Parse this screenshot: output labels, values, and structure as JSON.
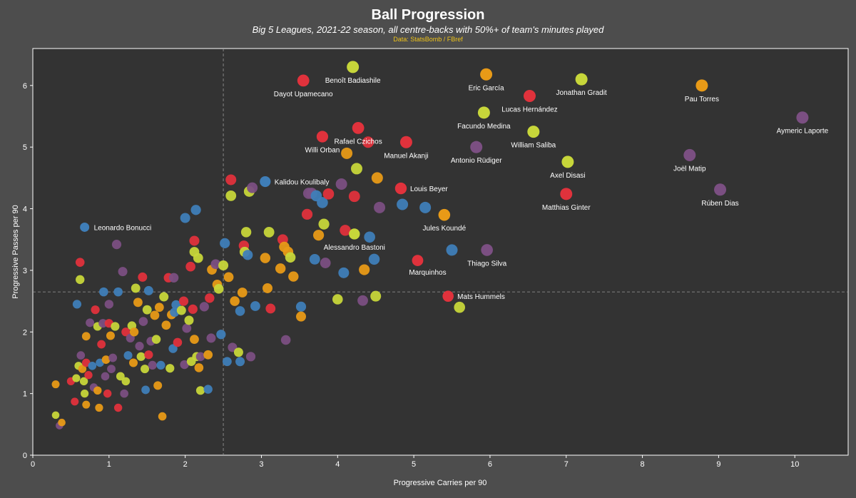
{
  "chart_data": {
    "type": "scatter",
    "title": "Ball Progression",
    "subtitle": "Big 5 Leagues, 2021-22 season, all centre-backs with 50%+ of team's minutes played",
    "source": "Data: StatsBomb / FBref",
    "xlabel": "Progressive Carries per 90",
    "ylabel": "Progressive Passes per 90",
    "xlim": [
      0,
      10.7
    ],
    "ylim": [
      0,
      6.6
    ],
    "xticks": [
      0,
      1,
      2,
      3,
      4,
      5,
      6,
      7,
      8,
      9,
      10
    ],
    "yticks": [
      0,
      1,
      2,
      3,
      4,
      5,
      6
    ],
    "x_mean": 2.5,
    "y_mean": 2.65,
    "grid": false,
    "colors": {
      "background": "#4d4d4d",
      "plot_background": "#333333",
      "red": "#e0323c",
      "orange": "#e89a17",
      "lime": "#c7d63a",
      "blue": "#3f7eb8",
      "purple": "#7b4f82"
    },
    "labeled_points": [
      {
        "name": "Benoît Badiashile",
        "x": 4.2,
        "y": 6.3,
        "color": "lime"
      },
      {
        "name": "Dayot Upamecano",
        "x": 3.55,
        "y": 6.08,
        "color": "red"
      },
      {
        "name": "Eric García",
        "x": 5.95,
        "y": 6.18,
        "color": "orange"
      },
      {
        "name": "Jonathan Gradit",
        "x": 7.2,
        "y": 6.1,
        "color": "lime"
      },
      {
        "name": "Pau Torres",
        "x": 8.78,
        "y": 6.0,
        "color": "orange"
      },
      {
        "name": "Lucas Hernández",
        "x": 6.52,
        "y": 5.83,
        "color": "red"
      },
      {
        "name": "Facundo Medina",
        "x": 5.92,
        "y": 5.56,
        "color": "lime"
      },
      {
        "name": "Aymeric Laporte",
        "x": 10.1,
        "y": 5.48,
        "color": "purple"
      },
      {
        "name": "Rafael Czichos",
        "x": 4.27,
        "y": 5.31,
        "color": "red"
      },
      {
        "name": "William Saliba",
        "x": 6.57,
        "y": 5.25,
        "color": "lime"
      },
      {
        "name": "Willi Orban",
        "x": 3.8,
        "y": 5.17,
        "color": "red"
      },
      {
        "name": "Manuel Akanji",
        "x": 4.9,
        "y": 5.08,
        "color": "red"
      },
      {
        "name": "Antonio Rüdiger",
        "x": 5.82,
        "y": 5.0,
        "color": "purple"
      },
      {
        "name": "Joël Matip",
        "x": 8.62,
        "y": 4.87,
        "color": "purple"
      },
      {
        "name": "Axel Disasi",
        "x": 7.02,
        "y": 4.76,
        "color": "lime"
      },
      {
        "name": "Kalidou Koulibaly",
        "x": 3.05,
        "y": 4.44,
        "color": "blue"
      },
      {
        "name": "Louis Beyer",
        "x": 4.83,
        "y": 4.33,
        "color": "red"
      },
      {
        "name": "Rúben Dias",
        "x": 9.02,
        "y": 4.31,
        "color": "purple"
      },
      {
        "name": "Matthias Ginter",
        "x": 7.0,
        "y": 4.24,
        "color": "red"
      },
      {
        "name": "Jules Koundé",
        "x": 5.4,
        "y": 3.9,
        "color": "orange"
      },
      {
        "name": "Leonardo Bonucci",
        "x": 0.68,
        "y": 3.7,
        "color": "blue"
      },
      {
        "name": "Alessandro Bastoni",
        "x": 4.22,
        "y": 3.59,
        "color": "lime"
      },
      {
        "name": "Thiago Silva",
        "x": 5.96,
        "y": 3.33,
        "color": "purple"
      },
      {
        "name": "Marquinhos",
        "x": 5.05,
        "y": 3.16,
        "color": "red"
      },
      {
        "name": "Mats Hummels",
        "x": 5.45,
        "y": 2.58,
        "color": "red"
      }
    ],
    "other_points": [
      [
        0.3,
        0.65,
        "lime"
      ],
      [
        0.35,
        0.48,
        "purple"
      ],
      [
        0.38,
        0.53,
        "orange"
      ],
      [
        0.3,
        1.15,
        "orange"
      ],
      [
        0.5,
        1.2,
        "red"
      ],
      [
        0.55,
        0.87,
        "red"
      ],
      [
        0.57,
        1.25,
        "lime"
      ],
      [
        0.6,
        1.45,
        "lime"
      ],
      [
        0.58,
        2.45,
        "blue"
      ],
      [
        0.62,
        2.85,
        "lime"
      ],
      [
        0.62,
        3.13,
        "red"
      ],
      [
        0.63,
        1.62,
        "purple"
      ],
      [
        0.65,
        1.4,
        "orange"
      ],
      [
        0.67,
        1.2,
        "lime"
      ],
      [
        0.68,
        1.0,
        "lime"
      ],
      [
        0.7,
        1.93,
        "orange"
      ],
      [
        0.7,
        1.5,
        "red"
      ],
      [
        0.7,
        0.82,
        "orange"
      ],
      [
        0.73,
        1.3,
        "red"
      ],
      [
        0.75,
        2.15,
        "purple"
      ],
      [
        0.78,
        1.45,
        "blue"
      ],
      [
        0.8,
        1.1,
        "purple"
      ],
      [
        0.82,
        2.36,
        "red"
      ],
      [
        0.85,
        1.05,
        "orange"
      ],
      [
        0.85,
        2.09,
        "lime"
      ],
      [
        0.87,
        0.77,
        "orange"
      ],
      [
        0.88,
        1.5,
        "blue"
      ],
      [
        0.9,
        1.8,
        "red"
      ],
      [
        0.92,
        2.14,
        "purple"
      ],
      [
        0.93,
        2.65,
        "blue"
      ],
      [
        0.95,
        1.28,
        "purple"
      ],
      [
        0.96,
        1.55,
        "orange"
      ],
      [
        0.98,
        1.0,
        "red"
      ],
      [
        1.0,
        2.45,
        "purple"
      ],
      [
        1.0,
        2.14,
        "red"
      ],
      [
        1.02,
        1.94,
        "orange"
      ],
      [
        1.03,
        1.4,
        "purple"
      ],
      [
        1.05,
        1.58,
        "purple"
      ],
      [
        1.08,
        2.09,
        "lime"
      ],
      [
        1.1,
        3.42,
        "purple"
      ],
      [
        1.12,
        0.77,
        "red"
      ],
      [
        1.12,
        2.65,
        "blue"
      ],
      [
        1.15,
        1.28,
        "lime"
      ],
      [
        1.18,
        2.98,
        "purple"
      ],
      [
        1.2,
        1.0,
        "purple"
      ],
      [
        1.22,
        1.2,
        "lime"
      ],
      [
        1.22,
        2.0,
        "red"
      ],
      [
        1.25,
        1.62,
        "blue"
      ],
      [
        1.28,
        1.9,
        "purple"
      ],
      [
        1.3,
        2.1,
        "lime"
      ],
      [
        1.32,
        1.5,
        "orange"
      ],
      [
        1.33,
        2.0,
        "orange"
      ],
      [
        1.35,
        2.71,
        "lime"
      ],
      [
        1.38,
        2.48,
        "orange"
      ],
      [
        1.4,
        1.77,
        "purple"
      ],
      [
        1.42,
        1.6,
        "lime"
      ],
      [
        1.44,
        2.89,
        "red"
      ],
      [
        1.45,
        2.17,
        "purple"
      ],
      [
        1.47,
        1.4,
        "lime"
      ],
      [
        1.48,
        1.06,
        "blue"
      ],
      [
        1.5,
        2.36,
        "lime"
      ],
      [
        1.52,
        2.67,
        "blue"
      ],
      [
        1.52,
        1.63,
        "red"
      ],
      [
        1.55,
        1.85,
        "purple"
      ],
      [
        1.57,
        1.46,
        "purple"
      ],
      [
        1.6,
        2.27,
        "orange"
      ],
      [
        1.62,
        1.88,
        "lime"
      ],
      [
        1.64,
        1.13,
        "orange"
      ],
      [
        1.66,
        2.4,
        "orange"
      ],
      [
        1.68,
        1.46,
        "blue"
      ],
      [
        1.7,
        0.63,
        "orange"
      ],
      [
        1.72,
        2.57,
        "lime"
      ],
      [
        1.75,
        2.11,
        "orange"
      ],
      [
        1.78,
        2.88,
        "red"
      ],
      [
        1.8,
        1.41,
        "lime"
      ],
      [
        1.82,
        2.28,
        "orange"
      ],
      [
        1.84,
        1.73,
        "blue"
      ],
      [
        1.85,
        2.88,
        "purple"
      ],
      [
        1.86,
        2.32,
        "blue"
      ],
      [
        1.88,
        2.44,
        "blue"
      ],
      [
        1.9,
        1.83,
        "red"
      ],
      [
        1.95,
        2.35,
        "lime"
      ],
      [
        1.98,
        2.5,
        "red"
      ],
      [
        1.99,
        1.47,
        "purple"
      ],
      [
        2.0,
        3.85,
        "blue"
      ],
      [
        2.02,
        2.06,
        "purple"
      ],
      [
        2.05,
        2.19,
        "lime"
      ],
      [
        2.07,
        3.06,
        "red"
      ],
      [
        2.08,
        1.52,
        "lime"
      ],
      [
        2.1,
        2.37,
        "red"
      ],
      [
        2.12,
        3.48,
        "red"
      ],
      [
        2.12,
        3.3,
        "lime"
      ],
      [
        2.12,
        1.88,
        "orange"
      ],
      [
        2.14,
        3.98,
        "blue"
      ],
      [
        2.15,
        1.6,
        "lime"
      ],
      [
        2.17,
        3.2,
        "lime"
      ],
      [
        2.18,
        1.42,
        "orange"
      ],
      [
        2.2,
        1.6,
        "purple"
      ],
      [
        2.2,
        1.05,
        "lime"
      ],
      [
        2.25,
        2.41,
        "purple"
      ],
      [
        2.3,
        1.07,
        "blue"
      ],
      [
        2.3,
        1.63,
        "orange"
      ],
      [
        2.32,
        2.55,
        "red"
      ],
      [
        2.34,
        1.9,
        "purple"
      ],
      [
        2.35,
        3.01,
        "orange"
      ],
      [
        2.4,
        3.1,
        "purple"
      ],
      [
        2.42,
        2.77,
        "orange"
      ],
      [
        2.44,
        2.7,
        "lime"
      ],
      [
        2.47,
        1.96,
        "blue"
      ],
      [
        2.5,
        3.08,
        "lime"
      ],
      [
        2.52,
        3.44,
        "blue"
      ],
      [
        2.55,
        1.52,
        "blue"
      ],
      [
        2.57,
        2.89,
        "orange"
      ],
      [
        2.6,
        4.47,
        "red"
      ],
      [
        2.6,
        4.21,
        "lime"
      ],
      [
        2.62,
        1.75,
        "purple"
      ],
      [
        2.65,
        2.5,
        "orange"
      ],
      [
        2.7,
        1.67,
        "lime"
      ],
      [
        2.72,
        2.34,
        "blue"
      ],
      [
        2.72,
        1.52,
        "blue"
      ],
      [
        2.75,
        2.64,
        "orange"
      ],
      [
        2.77,
        3.4,
        "red"
      ],
      [
        2.78,
        3.3,
        "lime"
      ],
      [
        2.8,
        3.62,
        "lime"
      ],
      [
        2.82,
        3.25,
        "blue"
      ],
      [
        2.84,
        4.28,
        "lime"
      ],
      [
        2.86,
        1.6,
        "purple"
      ],
      [
        2.88,
        4.34,
        "purple"
      ],
      [
        2.92,
        2.42,
        "blue"
      ],
      [
        3.05,
        3.2,
        "orange"
      ],
      [
        3.08,
        2.71,
        "orange"
      ],
      [
        3.1,
        3.62,
        "lime"
      ],
      [
        3.12,
        2.38,
        "red"
      ],
      [
        3.25,
        3.03,
        "orange"
      ],
      [
        3.28,
        3.5,
        "red"
      ],
      [
        3.3,
        3.38,
        "orange"
      ],
      [
        3.32,
        1.87,
        "purple"
      ],
      [
        3.35,
        3.3,
        "orange"
      ],
      [
        3.38,
        3.21,
        "lime"
      ],
      [
        3.42,
        2.9,
        "orange"
      ],
      [
        3.52,
        2.41,
        "blue"
      ],
      [
        3.52,
        2.25,
        "orange"
      ],
      [
        3.6,
        3.91,
        "red"
      ],
      [
        3.62,
        4.25,
        "purple"
      ],
      [
        3.66,
        4.25,
        "purple"
      ],
      [
        3.7,
        3.18,
        "blue"
      ],
      [
        3.72,
        4.21,
        "blue"
      ],
      [
        3.75,
        3.57,
        "orange"
      ],
      [
        3.8,
        4.1,
        "blue"
      ],
      [
        3.82,
        3.75,
        "lime"
      ],
      [
        3.84,
        3.12,
        "purple"
      ],
      [
        3.88,
        4.24,
        "red"
      ],
      [
        4.0,
        2.53,
        "lime"
      ],
      [
        4.05,
        4.4,
        "purple"
      ],
      [
        4.08,
        2.96,
        "blue"
      ],
      [
        4.1,
        3.65,
        "red"
      ],
      [
        4.12,
        4.9,
        "orange"
      ],
      [
        4.22,
        4.2,
        "red"
      ],
      [
        4.25,
        4.65,
        "lime"
      ],
      [
        4.33,
        2.51,
        "purple"
      ],
      [
        4.35,
        3.01,
        "orange"
      ],
      [
        4.4,
        5.08,
        "red"
      ],
      [
        4.42,
        3.54,
        "blue"
      ],
      [
        4.48,
        3.18,
        "blue"
      ],
      [
        4.5,
        2.58,
        "lime"
      ],
      [
        4.52,
        4.5,
        "orange"
      ],
      [
        4.55,
        4.02,
        "purple"
      ],
      [
        4.85,
        4.07,
        "blue"
      ],
      [
        5.15,
        4.02,
        "blue"
      ],
      [
        5.5,
        3.33,
        "blue"
      ],
      [
        5.6,
        2.4,
        "lime"
      ]
    ]
  }
}
